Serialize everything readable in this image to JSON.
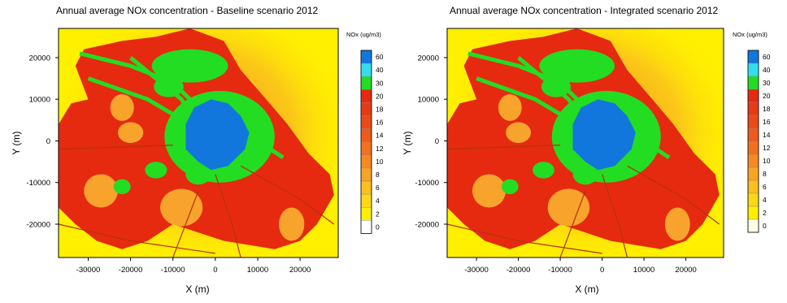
{
  "palette": {
    "background": "#FFF000",
    "light_red": "#F05A24",
    "red": "#E52A10",
    "green": "#22DD22",
    "blue": "#1177DD",
    "axis": "#000000"
  },
  "chart_data": [
    {
      "type": "heatmap",
      "title": "Annual average NOx concentration - Baseline scenario 2012",
      "xlabel": "X (m)",
      "ylabel": "Y (m)",
      "xlim": [
        -37000,
        29000
      ],
      "ylim": [
        -28000,
        27000
      ],
      "xticks": [
        -30000,
        -20000,
        -10000,
        0,
        10000,
        20000
      ],
      "xtick_labels": [
        "-30000",
        "-20000",
        "-10000",
        "0",
        "10000",
        "20000"
      ],
      "yticks": [
        20000,
        10000,
        0,
        -10000,
        -20000
      ],
      "ytick_labels": [
        "20000",
        "10000",
        "0",
        "-10000",
        "-20000"
      ],
      "colorbar": {
        "title": "NOx (ug/m3)",
        "levels": [
          "60",
          "40",
          "30",
          "20",
          "18",
          "16",
          "14",
          "12",
          "10",
          "8",
          "6",
          "4",
          "2",
          "0"
        ],
        "colors": [
          "#1177DD",
          "#33DDEE",
          "#22DD22",
          "#E52A10",
          "#E53A14",
          "#EA4A18",
          "#EE5A1C",
          "#F27020",
          "#F58A22",
          "#F8A424",
          "#FBBF20",
          "#FDD818",
          "#FFF000",
          "#FFFFFF"
        ]
      }
    },
    {
      "type": "heatmap",
      "title": "Annual average NOx concentration - Integrated scenario 2012",
      "xlabel": "X (m)",
      "ylabel": "Y (m)",
      "xlim": [
        -37000,
        29000
      ],
      "ylim": [
        -28000,
        27000
      ],
      "xticks": [
        -30000,
        -20000,
        -10000,
        0,
        10000,
        20000
      ],
      "xtick_labels": [
        "-30000",
        "-20000",
        "-10000",
        "0",
        "10000",
        "20000"
      ],
      "yticks": [
        20000,
        10000,
        0,
        -10000,
        -20000
      ],
      "ytick_labels": [
        "20000",
        "10000",
        "0",
        "-10000",
        "-20000"
      ],
      "colorbar": {
        "title": "NOx (ug/m3)",
        "levels": [
          "60",
          "40",
          "30",
          "20",
          "18",
          "16",
          "14",
          "12",
          "10",
          "8",
          "6",
          "4",
          "2",
          "0"
        ],
        "colors": [
          "#1177DD",
          "#33DDEE",
          "#22DD22",
          "#E52A10",
          "#E53A14",
          "#EA4A18",
          "#EE5A1C",
          "#F27020",
          "#F58A22",
          "#F8A424",
          "#FBBF20",
          "#FDD818",
          "#FFF000",
          "#FFFDE0"
        ]
      }
    }
  ]
}
